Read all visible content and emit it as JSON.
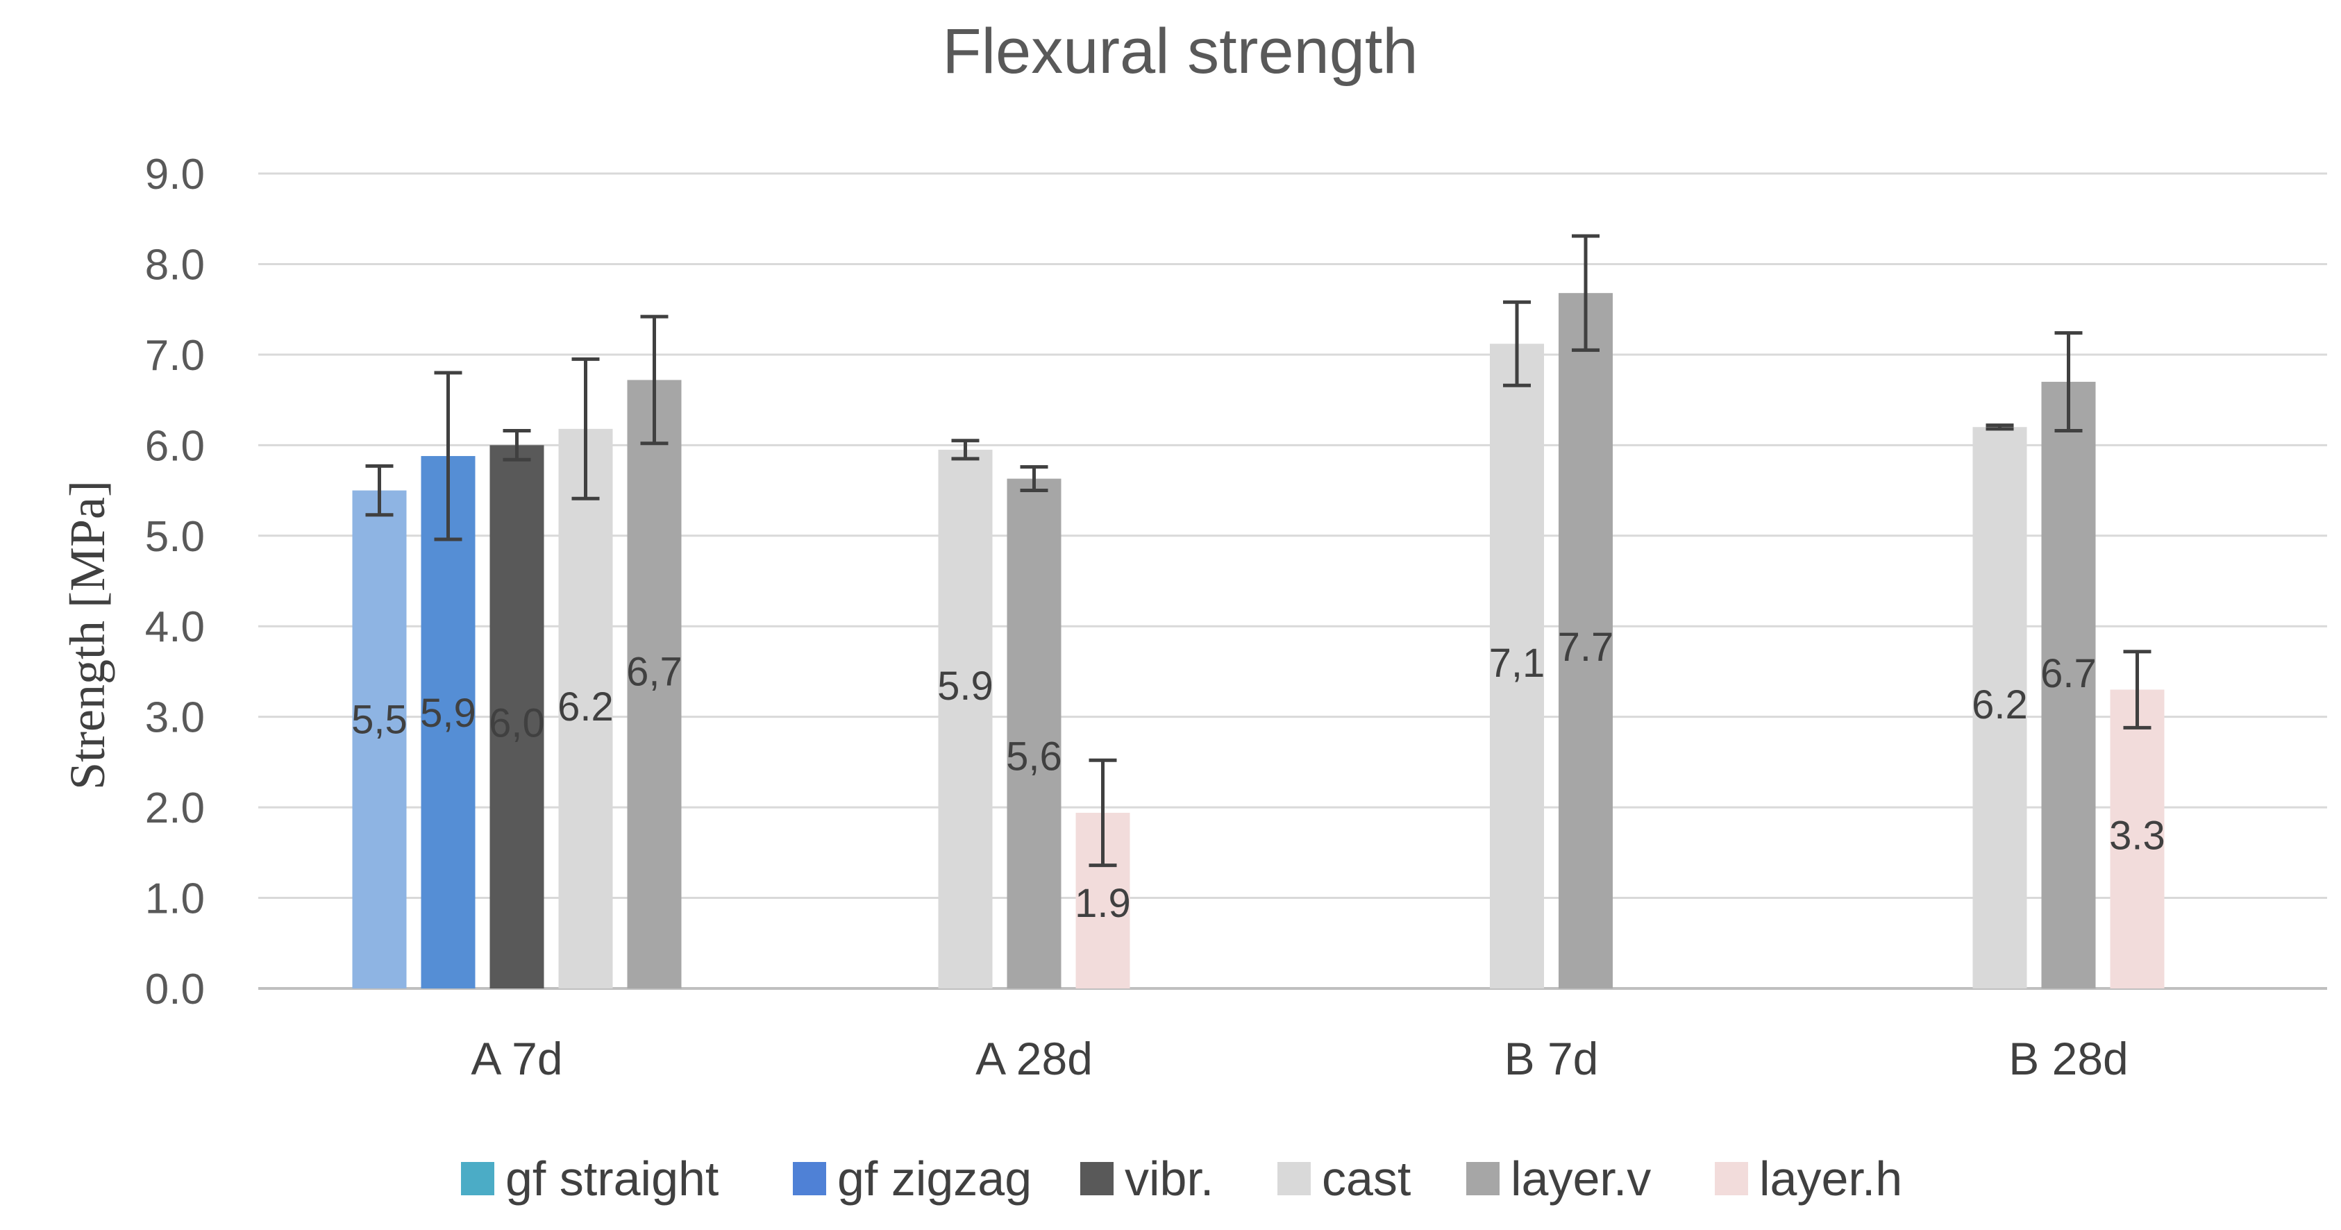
{
  "chart_data": {
    "type": "bar",
    "title": "Flexural strength",
    "xlabel": "",
    "ylabel": "Strength [MPa]",
    "ylim": [
      0,
      9
    ],
    "yticks": [
      "0.0",
      "1.0",
      "2.0",
      "3.0",
      "4.0",
      "5.0",
      "6.0",
      "7.0",
      "8.0",
      "9.0"
    ],
    "grid": true,
    "legend_position": "bottom",
    "categories": [
      "A 7d",
      "A 28d",
      "B 7d",
      "B 28d"
    ],
    "series": [
      {
        "name": "gf straight",
        "color": "#8EB4E3",
        "legend_color": "#4BACC6",
        "values": [
          5.5,
          null,
          null,
          null
        ],
        "labels": [
          "5,5",
          "",
          "",
          ""
        ],
        "errors": [
          0.27,
          null,
          null,
          null
        ]
      },
      {
        "name": "gf zigzag",
        "color": "#558ED5",
        "legend_color": "#4F81D6",
        "values": [
          5.88,
          null,
          null,
          null
        ],
        "labels": [
          "5,9",
          "",
          "",
          ""
        ],
        "errors": [
          0.92,
          null,
          null,
          null
        ]
      },
      {
        "name": "vibr.",
        "color": "#595959",
        "legend_color": "#595959",
        "values": [
          6.0,
          null,
          null,
          null
        ],
        "labels": [
          "6,0",
          "",
          "",
          ""
        ],
        "errors": [
          0.16,
          null,
          null,
          null
        ]
      },
      {
        "name": "cast",
        "color": "#D9D9D9",
        "legend_color": "#D9D9D9",
        "values": [
          6.18,
          5.95,
          7.12,
          6.2
        ],
        "labels": [
          "6.2",
          "5.9",
          "7,1",
          "6.2"
        ],
        "errors": [
          0.77,
          0.1,
          0.46,
          0.02
        ]
      },
      {
        "name": "layer.v",
        "color": "#A6A6A6",
        "legend_color": "#A6A6A6",
        "values": [
          6.72,
          5.63,
          7.68,
          6.7
        ],
        "labels": [
          "6,7",
          "5,6",
          "7.7",
          "6.7"
        ],
        "errors": [
          0.7,
          0.13,
          0.63,
          0.54
        ]
      },
      {
        "name": "layer.h",
        "color": "#F2DCDB",
        "legend_color": "#F2DCDB",
        "values": [
          null,
          1.94,
          null,
          3.3
        ],
        "labels": [
          "",
          "1.9",
          "",
          "3.3"
        ],
        "errors": [
          null,
          0.58,
          null,
          0.42
        ]
      }
    ]
  }
}
